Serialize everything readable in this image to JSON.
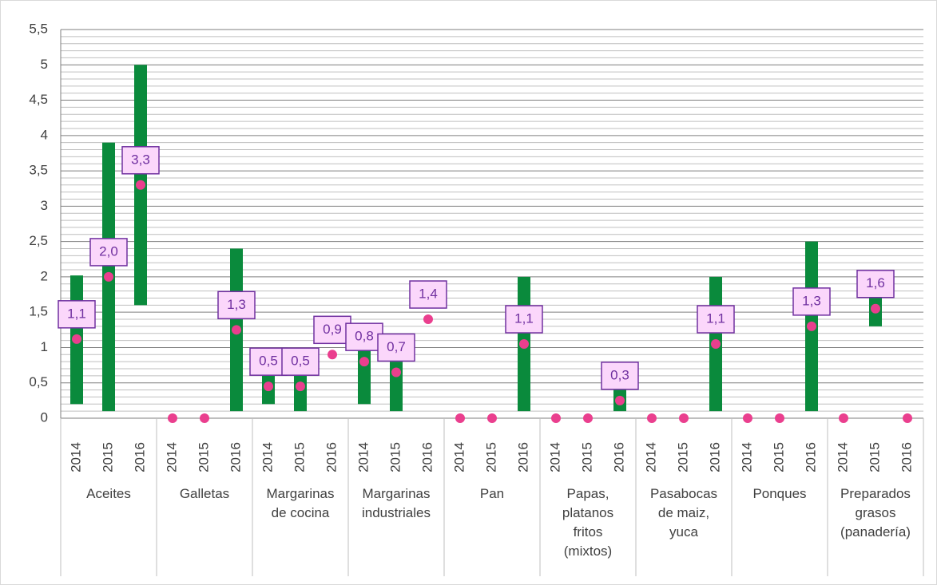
{
  "chart_data": {
    "type": "range-bar-dot",
    "groups": [
      "Aceites",
      "Galletas",
      "Margarinas de cocina",
      "Margarinas industriales",
      "Pan",
      "Papas, platanos fritos (mixtos)",
      "Pasabocas de maiz, yuca",
      "Ponques",
      "Preparados grasos (panadería)"
    ],
    "x": [
      "2014",
      "2015",
      "2016",
      "2014",
      "2015",
      "2016",
      "2014",
      "2015",
      "2016",
      "2014",
      "2015",
      "2016",
      "2014",
      "2015",
      "2016",
      "2014",
      "2015",
      "2016",
      "2014",
      "2015",
      "2016",
      "2014",
      "2015",
      "2016",
      "2014",
      "2015",
      "2016"
    ],
    "series": [
      {
        "name": "low",
        "color": "#0a8a3c",
        "values": [
          0.2,
          0.1,
          1.6,
          null,
          null,
          0.1,
          0.2,
          0.1,
          null,
          0.2,
          0.1,
          null,
          null,
          null,
          0.1,
          null,
          null,
          0.1,
          null,
          null,
          0.1,
          null,
          null,
          0.1,
          null,
          1.3,
          null
        ]
      },
      {
        "name": "high",
        "color": "#0a8a3c",
        "values": [
          2.02,
          3.9,
          5.0,
          null,
          null,
          2.4,
          0.6,
          0.6,
          null,
          1.0,
          0.8,
          null,
          null,
          null,
          2.0,
          null,
          null,
          0.4,
          null,
          null,
          2.0,
          null,
          null,
          2.5,
          null,
          1.7,
          null
        ]
      },
      {
        "name": "mean",
        "color": "#ea3f8e",
        "values": [
          1.12,
          2.0,
          3.3,
          0,
          0,
          1.25,
          0.45,
          0.45,
          0.9,
          0.8,
          0.65,
          1.4,
          0,
          0,
          1.05,
          0,
          0,
          0.25,
          0,
          0,
          1.05,
          0,
          0,
          1.3,
          0,
          1.55,
          0
        ],
        "value_labels": [
          "1,1",
          "2,0",
          "3,3",
          null,
          null,
          "1,3",
          "0,5",
          "0,5",
          "0,9",
          "0,8",
          "0,7",
          "1,4",
          null,
          null,
          "1,1",
          null,
          null,
          "0,3",
          null,
          null,
          "1,1",
          null,
          null,
          "1,3",
          null,
          "1,6",
          null
        ]
      }
    ],
    "ylim": [
      0,
      5.5
    ],
    "yticks": [
      0,
      {
        "value": 0.5,
        "label": "0,5"
      },
      1,
      {
        "value": 1.5,
        "label": "1,5"
      },
      2,
      {
        "value": 2.5,
        "label": "2,5"
      },
      3,
      {
        "value": 3.5,
        "label": "3,5"
      },
      4,
      {
        "value": 4.5,
        "label": "4,5"
      },
      5,
      {
        "value": 5.5,
        "label": "5,5"
      }
    ],
    "grid": true
  }
}
